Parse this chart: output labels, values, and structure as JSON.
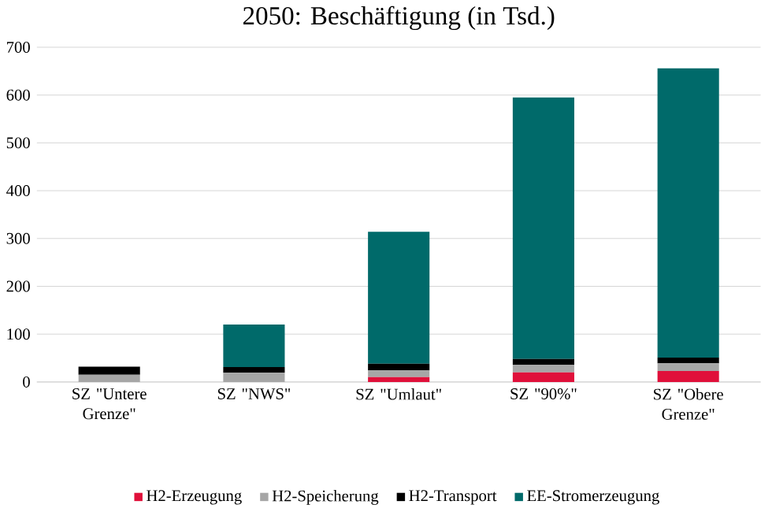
{
  "chart_data": {
    "type": "bar",
    "stacked": true,
    "title": "2050: Beschäftigung (in Tsd.)",
    "categories": [
      "SZ \"Untere Grenze\"",
      "SZ \"NWS\"",
      "SZ \"Umlaut\"",
      "SZ \"90%\"",
      "SZ \"Obere Grenze\""
    ],
    "series": [
      {
        "name": "H2-Erzeugung",
        "color": "#e0103a",
        "values": [
          0,
          0,
          10,
          20,
          23
        ]
      },
      {
        "name": "H2-Speicherung",
        "color": "#a6a6a6",
        "values": [
          15,
          19,
          14,
          16,
          16
        ]
      },
      {
        "name": "H2-Transport",
        "color": "#000000",
        "values": [
          17,
          12,
          14,
          12,
          12
        ]
      },
      {
        "name": "EE-Stromerzeugung",
        "color": "#006a6a",
        "values": [
          0,
          89,
          276,
          547,
          605
        ]
      }
    ],
    "ylim": [
      0,
      700
    ],
    "yticks": [
      0,
      100,
      200,
      300,
      400,
      500,
      600,
      700
    ],
    "grid": "y",
    "legend": "bottom"
  }
}
